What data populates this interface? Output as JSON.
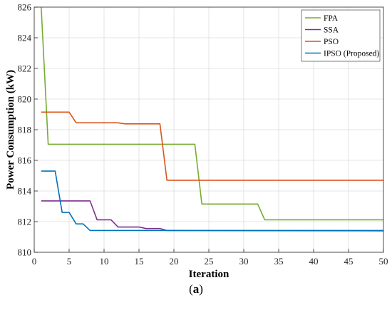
{
  "chart_data": {
    "type": "line",
    "title": "",
    "xlabel": "Iteration",
    "ylabel": "Power Consumption (kW)",
    "xlim": [
      0,
      50
    ],
    "ylim": [
      810,
      826
    ],
    "x_ticks": [
      0,
      5,
      10,
      15,
      20,
      25,
      30,
      35,
      40,
      45,
      50
    ],
    "y_ticks": [
      810,
      812,
      814,
      816,
      818,
      820,
      822,
      824,
      826
    ],
    "grid": true,
    "legend_position": "top-right",
    "series": [
      {
        "name": "FPA",
        "color": "#77ac30",
        "x": [
          1,
          2,
          23,
          24,
          32,
          33,
          50
        ],
        "y": [
          826,
          817.05,
          817.05,
          813.15,
          813.15,
          812.12,
          812.12
        ]
      },
      {
        "name": "SSA",
        "color": "#7e2f8e",
        "x": [
          1,
          8,
          9,
          11,
          12,
          15,
          16,
          18,
          19,
          50
        ],
        "y": [
          813.35,
          813.35,
          812.12,
          812.12,
          811.65,
          811.65,
          811.55,
          811.55,
          811.42,
          811.4
        ]
      },
      {
        "name": "PSO",
        "color": "#d95319",
        "x": [
          1,
          5,
          6,
          12,
          13,
          18,
          19,
          50
        ],
        "y": [
          819.15,
          819.15,
          818.45,
          818.45,
          818.38,
          818.38,
          814.7,
          814.7
        ]
      },
      {
        "name": "IPSO (Proposed)",
        "color": "#0072bd",
        "x": [
          1,
          3,
          4,
          5,
          6,
          7,
          8,
          50
        ],
        "y": [
          815.3,
          815.3,
          812.6,
          812.6,
          811.85,
          811.85,
          811.42,
          811.42
        ]
      }
    ]
  },
  "caption": {
    "open": "(",
    "letter": "a",
    "close": ")"
  }
}
